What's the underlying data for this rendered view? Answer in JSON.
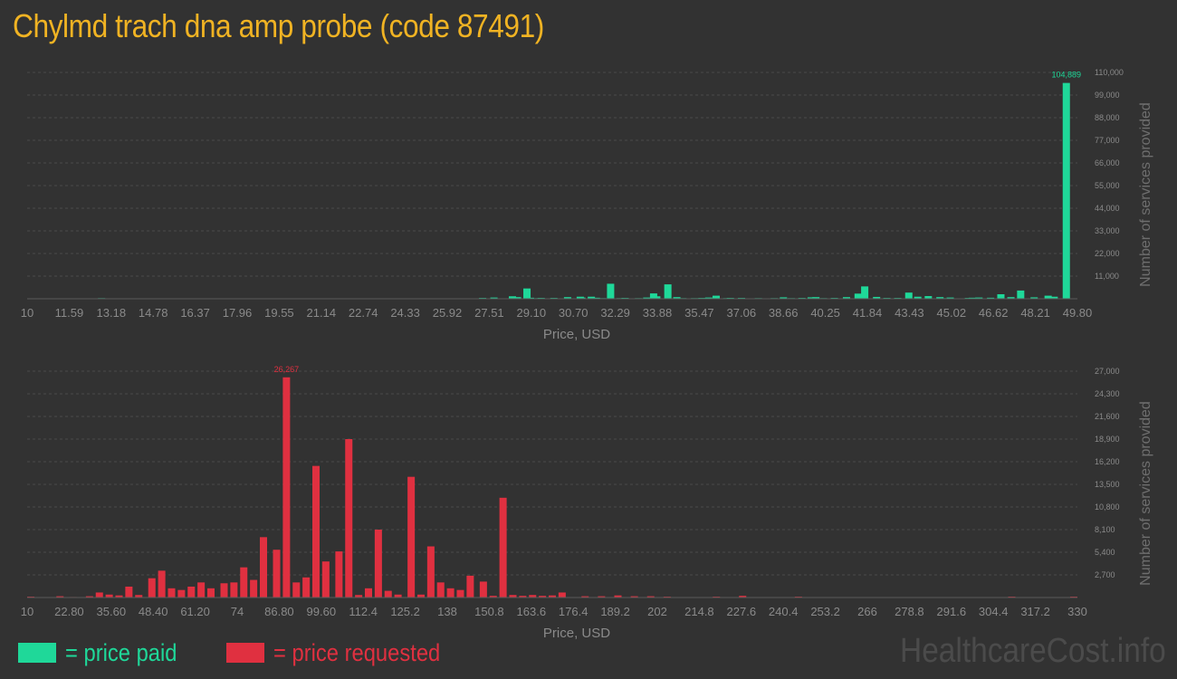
{
  "page": {
    "title": "Chylmd trach dna amp probe (code 87491)",
    "watermark": "HealthcareCost.info"
  },
  "legend": {
    "paid_label": "= price paid",
    "requested_label": "= price requested"
  },
  "colors": {
    "background": "#323232",
    "title": "#f0b323",
    "paid": "#1fd899",
    "requested": "#e03040",
    "watermark": "#4b4b4b"
  },
  "chart_data": [
    {
      "type": "bar",
      "title": "",
      "xlabel": "Price, USD",
      "ylabel": "Number of services provided",
      "color": "#1fd899",
      "xlim": [
        10,
        49.8
      ],
      "ylim": [
        0,
        110000
      ],
      "x_ticks": [
        "10",
        "11.59",
        "13.18",
        "14.78",
        "16.37",
        "17.96",
        "19.55",
        "21.14",
        "22.74",
        "24.33",
        "25.92",
        "27.51",
        "29.10",
        "30.70",
        "32.29",
        "33.88",
        "35.47",
        "37.06",
        "38.66",
        "40.25",
        "41.84",
        "43.43",
        "45.02",
        "46.62",
        "48.21",
        "49.80"
      ],
      "y_ticks": [
        "110,000",
        "99,000",
        "88,000",
        "77,000",
        "66,000",
        "55,000",
        "44,000",
        "33,000",
        "22,000",
        "11,000"
      ],
      "max_label": "104,889",
      "x": [
        10.0,
        11.56,
        12.82,
        13.24,
        14.01,
        15.27,
        16.66,
        17.99,
        18.84,
        19.82,
        20.45,
        21.36,
        21.85,
        22.4,
        22.66,
        23.09,
        23.43,
        24.03,
        24.59,
        25.1,
        25.95,
        26.54,
        27.26,
        27.69,
        27.85,
        28.39,
        28.58,
        28.94,
        29.08,
        29.38,
        29.48,
        29.96,
        30.48,
        30.96,
        31.02,
        31.38,
        31.57,
        31.81,
        32.11,
        32.47,
        32.66,
        33.17,
        33.48,
        33.66,
        33.74,
        33.86,
        34.28,
        34.62,
        34.85,
        35.29,
        35.57,
        35.83,
        36.11,
        36.51,
        36.65,
        37.07,
        37.71,
        38.31,
        38.66,
        38.96,
        39.36,
        39.71,
        39.89,
        40.18,
        40.59,
        41.05,
        41.49,
        41.74,
        42.19,
        42.58,
        42.99,
        43.41,
        43.75,
        44.15,
        44.59,
        44.69,
        44.98,
        45.67,
        45.82,
        46.07,
        46.51,
        46.9,
        47.28,
        47.65,
        48.16,
        48.69,
        48.92,
        49.38
      ],
      "values": [
        180,
        100,
        300,
        100,
        150,
        60,
        40,
        50,
        70,
        40,
        30,
        60,
        40,
        50,
        30,
        40,
        40,
        30,
        60,
        30,
        40,
        60,
        400,
        600,
        200,
        1200,
        800,
        5000,
        500,
        300,
        400,
        400,
        800,
        1000,
        600,
        1000,
        500,
        300,
        7300,
        300,
        400,
        300,
        600,
        200,
        2600,
        1200,
        7000,
        800,
        300,
        300,
        400,
        600,
        1500,
        300,
        400,
        400,
        300,
        300,
        700,
        300,
        400,
        700,
        800,
        300,
        400,
        800,
        2500,
        6000,
        900,
        400,
        400,
        3000,
        1000,
        1300,
        800,
        300,
        600,
        400,
        500,
        600,
        500,
        2200,
        800,
        4000,
        700,
        1500,
        1000,
        104889
      ]
    },
    {
      "type": "bar",
      "title": "",
      "xlabel": "Price, USD",
      "ylabel": "Number of services provided",
      "color": "#e03040",
      "xlim": [
        10,
        330
      ],
      "ylim": [
        0,
        27000
      ],
      "x_ticks": [
        "10",
        "22.80",
        "35.60",
        "48.40",
        "61.20",
        "74",
        "86.80",
        "99.60",
        "112.4",
        "125.2",
        "138",
        "150.8",
        "163.6",
        "176.4",
        "189.2",
        "202",
        "214.8",
        "227.6",
        "240.4",
        "253.2",
        "266",
        "278.8",
        "291.6",
        "304.4",
        "317.2",
        "330"
      ],
      "y_ticks": [
        "27,000",
        "24,300",
        "21,600",
        "18,900",
        "16,200",
        "13,500",
        "10,800",
        "8,100",
        "5,400",
        "2,700"
      ],
      "max_label": "26,267",
      "x": [
        10,
        20,
        24,
        29,
        32,
        35,
        38,
        41,
        44,
        48,
        51,
        54,
        57,
        60,
        63,
        66,
        70,
        73,
        76,
        79,
        82,
        86,
        89,
        92,
        95,
        98,
        101,
        105,
        108,
        111,
        114,
        117,
        120,
        123,
        127,
        130,
        133,
        136,
        139,
        142,
        145,
        149,
        152,
        155,
        158,
        161,
        164,
        167,
        170,
        173,
        180,
        185,
        190,
        195,
        200,
        205,
        220,
        228,
        245,
        310,
        330
      ],
      "values": [
        100,
        150,
        60,
        150,
        600,
        350,
        250,
        1300,
        300,
        2300,
        3200,
        1100,
        900,
        1300,
        1800,
        1100,
        1700,
        1800,
        3600,
        2100,
        7200,
        5700,
        26267,
        1800,
        2400,
        15700,
        4300,
        5500,
        18900,
        300,
        1100,
        8100,
        800,
        350,
        14400,
        350,
        6100,
        1800,
        1100,
        900,
        2600,
        1900,
        200,
        11900,
        300,
        200,
        300,
        200,
        250,
        600,
        150,
        150,
        250,
        150,
        150,
        100,
        100,
        200,
        100,
        100,
        100
      ]
    }
  ]
}
